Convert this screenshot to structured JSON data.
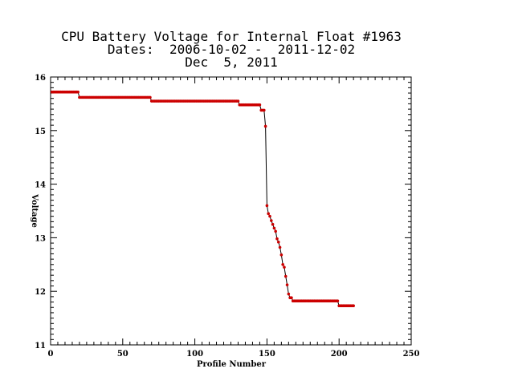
{
  "chart_data": {
    "type": "line",
    "title": [
      "CPU Battery Voltage for Internal Float #1963",
      "Dates:  2006-10-02 -  2011-12-02",
      "Dec  5, 2011"
    ],
    "xlabel": "Profile Number",
    "ylabel": "Voltage",
    "xlim": [
      0,
      250
    ],
    "ylim": [
      11,
      16
    ],
    "xticks": [
      0,
      50,
      100,
      150,
      200,
      250
    ],
    "yticks": [
      11,
      12,
      13,
      14,
      15,
      16
    ],
    "grid": false,
    "legend": "none",
    "line_color": "#000000",
    "marker_color": "#cc0000",
    "series": [
      {
        "segments": [
          {
            "x0": 1,
            "x1": 19,
            "y": 15.72
          },
          {
            "x0": 20,
            "x1": 69,
            "y": 15.62
          },
          {
            "x0": 70,
            "x1": 130,
            "y": 15.55
          },
          {
            "x0": 131,
            "x1": 145,
            "y": 15.48
          },
          {
            "x0": 146,
            "x1": 147,
            "y": 15.38
          }
        ],
        "points": [
          [
            148,
            15.38
          ],
          [
            149,
            15.08
          ],
          [
            150,
            13.6
          ],
          [
            151,
            13.45
          ],
          [
            152,
            13.4
          ],
          [
            153,
            13.32
          ],
          [
            154,
            13.25
          ],
          [
            155,
            13.18
          ],
          [
            156,
            13.12
          ],
          [
            157,
            12.98
          ],
          [
            158,
            12.92
          ],
          [
            159,
            12.82
          ],
          [
            160,
            12.68
          ],
          [
            161,
            12.5
          ],
          [
            162,
            12.45
          ],
          [
            163,
            12.28
          ],
          [
            164,
            12.12
          ],
          [
            165,
            11.95
          ],
          [
            166,
            11.88
          ],
          [
            167,
            11.88
          ],
          [
            168,
            11.82
          ],
          [
            169,
            11.82
          ]
        ],
        "segments_after": [
          {
            "x0": 170,
            "x1": 199,
            "y": 11.82
          },
          {
            "x0": 200,
            "x1": 210,
            "y": 11.73
          }
        ]
      }
    ]
  }
}
